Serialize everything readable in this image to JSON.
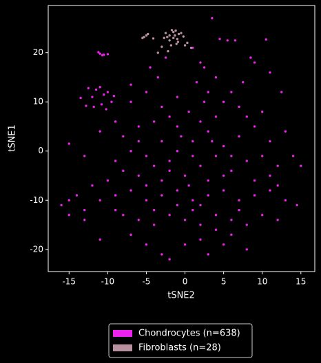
{
  "chart_data": {
    "type": "scatter",
    "x_label": "tSNE2",
    "y_label": "tSNE1",
    "xlim": [
      -17.7,
      16.8
    ],
    "ylim": [
      -24.5,
      29.6
    ],
    "xticks": [
      -15,
      -10,
      -5,
      0,
      5,
      10,
      15
    ],
    "yticks": [
      -20,
      -10,
      0,
      10,
      20
    ],
    "legend": "below",
    "series": [
      {
        "name": "Chondrocytes (n=638)",
        "color": "#ee22ee",
        "x": [
          -11,
          -10.5,
          -10,
          -11.2,
          -10.7,
          -12.5,
          -12,
          -11.5,
          -11,
          -10.5,
          -10,
          -9.5,
          -10.8,
          -12.8,
          -13.5,
          -11.8,
          -9.2,
          -10.2,
          -7,
          -4.5,
          -3.5,
          -5,
          -2.5,
          1,
          2,
          3.5,
          4.5,
          5.5,
          6.5,
          9,
          10.5,
          8.5,
          12.5,
          11,
          7.5,
          2.5,
          1.5,
          3,
          4,
          5,
          6,
          -1,
          0.5,
          -2,
          -4,
          -6,
          -8,
          -11,
          -15,
          -13,
          -9,
          -7,
          -5,
          -3,
          -1,
          1,
          3,
          5,
          7,
          9,
          11,
          13,
          14,
          12,
          10,
          8,
          6,
          4,
          2,
          0,
          -2,
          -4,
          -6,
          -8,
          -10,
          -12,
          -14,
          -16,
          -15,
          -13,
          -11,
          -9,
          -7,
          -5,
          -3,
          -1,
          1,
          3,
          5,
          7,
          9,
          11,
          13,
          14.5,
          12,
          10,
          8,
          6,
          4,
          2,
          0,
          -2,
          -4,
          -6,
          -8,
          -11,
          -7,
          -5,
          -3,
          -2,
          0,
          2,
          3,
          5,
          6,
          8,
          4,
          1,
          -1,
          3,
          5,
          -3,
          -5,
          8,
          10,
          7,
          -7,
          -3,
          2,
          4,
          -1,
          1,
          -2,
          6,
          9,
          11,
          -9,
          -13,
          -15,
          15,
          2.5,
          3.5,
          -0.5,
          0.5,
          -6,
          -9,
          12,
          7,
          -4,
          2
        ],
        "values": [
          19.8,
          19.6,
          19.7,
          20.1,
          19.5,
          12.8,
          11,
          12.5,
          13,
          11.5,
          12,
          10,
          9.5,
          9.2,
          10.8,
          9,
          11.2,
          8.5,
          13.5,
          17,
          15,
          12,
          19,
          21,
          18,
          27,
          22.8,
          22.5,
          22.5,
          18,
          22.7,
          19,
          12,
          16,
          14,
          17,
          14,
          12,
          15,
          10,
          12,
          11,
          8,
          7,
          6,
          5,
          3,
          4,
          1.5,
          -1,
          -2,
          0,
          -1,
          2,
          0,
          2,
          4,
          1,
          3,
          5,
          2,
          4,
          -1,
          -3,
          -1,
          -2,
          -4,
          -1,
          -3,
          -5,
          -4,
          -3,
          -5,
          -4,
          -6,
          -7,
          -9,
          -11,
          -13,
          -12,
          -10,
          -9,
          -8,
          -10,
          -9,
          -8,
          -10,
          -9,
          -8,
          -10,
          -9,
          -8,
          -10,
          -11,
          -14,
          -13,
          -15,
          -14,
          -13,
          -15,
          -14,
          -13,
          -15,
          -14,
          -13,
          -18,
          -17,
          -19,
          -21,
          -22,
          -19,
          -18,
          -21,
          -19,
          -17,
          -20,
          -16,
          -12,
          -11,
          -6,
          -5,
          -6,
          -7,
          7,
          8,
          9,
          10,
          9,
          6,
          7,
          5,
          -1,
          -2,
          -1,
          -6,
          -5,
          -12,
          -14,
          -10,
          -3,
          10,
          2,
          3,
          -7,
          2,
          6,
          -7,
          -12,
          -12,
          -11
        ]
      },
      {
        "name": "Fibroblasts (n=28)",
        "color": "#b8909f",
        "x": [
          -5.3,
          -5,
          -5.5,
          -4.8,
          -2,
          -1.5,
          -1.2,
          -0.8,
          -1.5,
          -2.3,
          -1,
          0.3,
          0.8,
          -3.5,
          -2.2,
          -1.8,
          -0.5,
          -1.3,
          -2,
          -2.7,
          -0.2,
          -1.7,
          -0.9,
          -2.5,
          -1.1,
          -4.1,
          0,
          -3
        ],
        "values": [
          23.2,
          23.5,
          23,
          23.8,
          23.5,
          24.2,
          24.5,
          23.8,
          23,
          23.2,
          22.8,
          22,
          21,
          20,
          20.3,
          21.5,
          24,
          23.5,
          22.5,
          23,
          23.3,
          24.6,
          22.2,
          24,
          21.8,
          22.9,
          21.5,
          21.2
        ]
      }
    ]
  }
}
